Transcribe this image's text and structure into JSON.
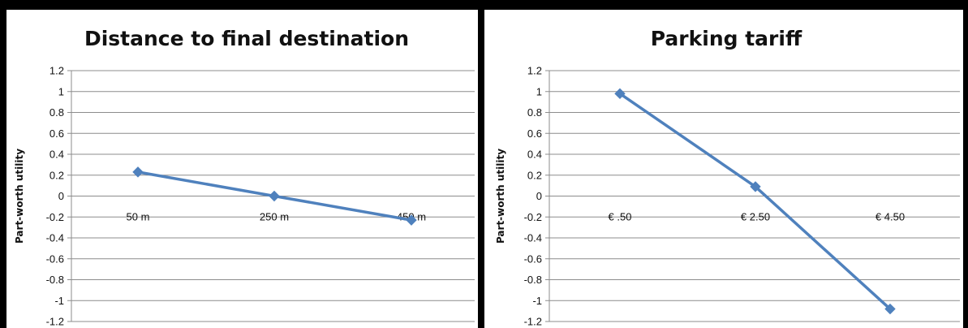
{
  "chart_data": [
    {
      "type": "line",
      "title": "Distance to final destination",
      "xlabel": "",
      "ylabel": "Part-worth utility",
      "categories": [
        "50 m",
        "250 m",
        "450 m"
      ],
      "series": [
        {
          "values": [
            0.23,
            0.0,
            -0.23
          ]
        }
      ],
      "ylim": [
        -1.2,
        1.2
      ],
      "yticks": [
        1.2,
        1,
        0.8,
        0.6,
        0.4,
        0.2,
        0,
        -0.2,
        -0.4,
        -0.6,
        -0.8,
        -1,
        -1.2
      ],
      "ytick_labels": [
        "1.2",
        "1",
        "0.8",
        "0.6",
        "0.4",
        "0.2",
        "0",
        "-0.2",
        "-0.4",
        "-0.6",
        "-0.8",
        "-1",
        "-1.2"
      ],
      "grid": true,
      "legend": "none",
      "line_color": "#4F81BD",
      "marker": "diamond"
    },
    {
      "type": "line",
      "title": "Parking tariff",
      "xlabel": "",
      "ylabel": "Part-worth utility",
      "categories": [
        "€ .50",
        "€ 2.50",
        "€ 4.50"
      ],
      "series": [
        {
          "values": [
            0.98,
            0.09,
            -1.08
          ]
        }
      ],
      "ylim": [
        -1.2,
        1.2
      ],
      "yticks": [
        1.2,
        1,
        0.8,
        0.6,
        0.4,
        0.2,
        0,
        -0.2,
        -0.4,
        -0.6,
        -0.8,
        -1,
        -1.2
      ],
      "ytick_labels": [
        "1.2",
        "1",
        "0.8",
        "0.6",
        "0.4",
        "0.2",
        "0",
        "-0.2",
        "-0.4",
        "-0.6",
        "-0.8",
        "-1",
        "-1.2"
      ],
      "grid": true,
      "legend": "none",
      "line_color": "#4F81BD",
      "marker": "diamond"
    }
  ]
}
